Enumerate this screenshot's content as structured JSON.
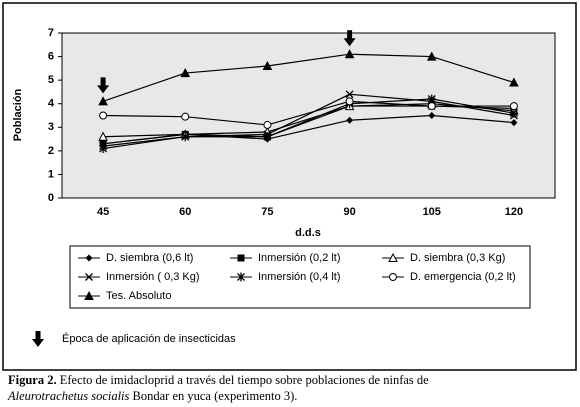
{
  "chart_data": {
    "type": "line",
    "x_label": "d.d.s",
    "y_label": "Población",
    "categories": [
      45,
      60,
      75,
      90,
      105,
      120
    ],
    "ylim": [
      0,
      7
    ],
    "yticks": [
      0,
      1,
      2,
      3,
      4,
      5,
      6,
      7
    ],
    "series": [
      {
        "name": "D. siembra (0,6 lt)",
        "color": "#000000",
        "marker": "diamond",
        "values": [
          2.3,
          2.7,
          2.5,
          3.3,
          3.5,
          3.2
        ]
      },
      {
        "name": "Inmersión (0,2 lt)",
        "color": "#000000",
        "marker": "square",
        "values": [
          2.3,
          2.7,
          2.6,
          3.9,
          3.9,
          3.8
        ]
      },
      {
        "name": "D. siembra (0,3 Kg)",
        "color": "#000000",
        "marker": "triangle-open",
        "values": [
          2.6,
          2.7,
          2.8,
          3.9,
          4.0,
          3.7
        ]
      },
      {
        "name": "Inmersión ( 0,3 Kg)",
        "color": "#000000",
        "marker": "x",
        "values": [
          2.2,
          2.6,
          2.7,
          4.4,
          4.1,
          3.5
        ]
      },
      {
        "name": "Inmersión (0,4 lt)",
        "color": "#000000",
        "marker": "star",
        "values": [
          2.1,
          2.6,
          2.6,
          4.0,
          4.2,
          3.6
        ]
      },
      {
        "name": "D. emergencia (0,2 lt)",
        "color": "#000000",
        "marker": "circle-open",
        "values": [
          3.5,
          3.45,
          3.1,
          4.1,
          3.9,
          3.9
        ]
      },
      {
        "name": "Tes. Absoluto",
        "color": "#000000",
        "marker": "triangle",
        "values": [
          4.1,
          5.3,
          5.6,
          6.1,
          6.0,
          4.9
        ]
      }
    ],
    "annotation": {
      "text": "Época de aplicación de insecticidas",
      "x": [
        45,
        90
      ]
    },
    "caption": {
      "label": "Figura 2.",
      "text": "Efecto de imidacloprid a través del tiempo sobre poblaciones de ninfas de",
      "species": "Aleurotrachetus socialis",
      "text_end": "Bondar en yuca (experimento 3)."
    }
  }
}
